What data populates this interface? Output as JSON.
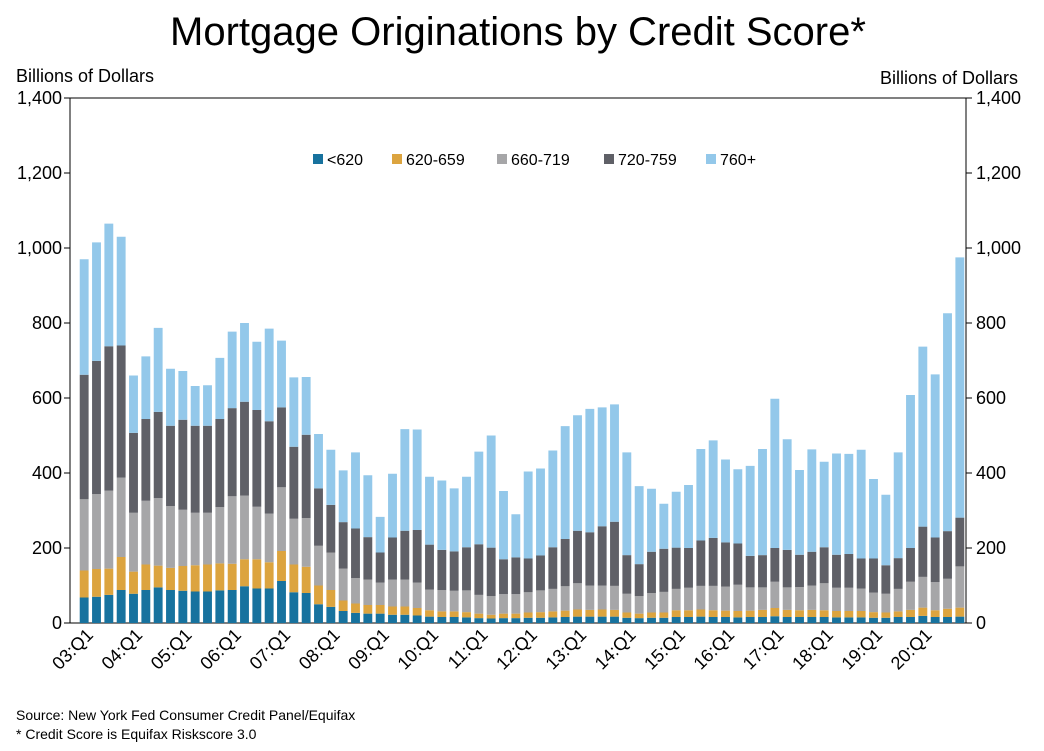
{
  "chart_data": {
    "type": "bar",
    "stacked": true,
    "title": "Mortgage Originations by Credit Score*",
    "ylabel_left": "Billions of Dollars",
    "ylabel_right": "Billions of Dollars",
    "ylim": [
      0,
      1400
    ],
    "yticks": [
      "0",
      "200",
      "400",
      "600",
      "800",
      "1,000",
      "1,200",
      "1,400"
    ],
    "grid": false,
    "legend_position": "top-center",
    "x_tick_labels": [
      "03:Q1",
      "04:Q1",
      "05:Q1",
      "06:Q1",
      "07:Q1",
      "08:Q1",
      "09:Q1",
      "10:Q1",
      "11:Q1",
      "12:Q1",
      "13:Q1",
      "14:Q1",
      "15:Q1",
      "16:Q1",
      "17:Q1",
      "18:Q1",
      "19:Q1",
      "20:Q1"
    ],
    "categories": [
      "03:Q1",
      "03:Q2",
      "03:Q3",
      "03:Q4",
      "04:Q1",
      "04:Q2",
      "04:Q3",
      "04:Q4",
      "05:Q1",
      "05:Q2",
      "05:Q3",
      "05:Q4",
      "06:Q1",
      "06:Q2",
      "06:Q3",
      "06:Q4",
      "07:Q1",
      "07:Q2",
      "07:Q3",
      "07:Q4",
      "08:Q1",
      "08:Q2",
      "08:Q3",
      "08:Q4",
      "09:Q1",
      "09:Q2",
      "09:Q3",
      "09:Q4",
      "10:Q1",
      "10:Q2",
      "10:Q3",
      "10:Q4",
      "11:Q1",
      "11:Q2",
      "11:Q3",
      "11:Q4",
      "12:Q1",
      "12:Q2",
      "12:Q3",
      "12:Q4",
      "13:Q1",
      "13:Q2",
      "13:Q3",
      "13:Q4",
      "14:Q1",
      "14:Q2",
      "14:Q3",
      "14:Q4",
      "15:Q1",
      "15:Q2",
      "15:Q3",
      "15:Q4",
      "16:Q1",
      "16:Q2",
      "16:Q3",
      "16:Q4",
      "17:Q1",
      "17:Q2",
      "17:Q3",
      "17:Q4",
      "18:Q1",
      "18:Q2",
      "18:Q3",
      "18:Q4",
      "19:Q1",
      "19:Q2",
      "19:Q3",
      "19:Q4",
      "20:Q1",
      "20:Q2",
      "20:Q3",
      "20:Q4"
    ],
    "series": [
      {
        "name": "<620",
        "color": "#17729e",
        "values": [
          68,
          70,
          75,
          88,
          78,
          88,
          95,
          88,
          86,
          84,
          84,
          87,
          88,
          98,
          92,
          92,
          112,
          82,
          80,
          50,
          43,
          32,
          27,
          25,
          25,
          22,
          22,
          20,
          17,
          16,
          16,
          15,
          13,
          12,
          13,
          13,
          14,
          14,
          15,
          16,
          17,
          17,
          17,
          17,
          14,
          13,
          14,
          14,
          16,
          16,
          17,
          16,
          16,
          15,
          16,
          16,
          18,
          16,
          16,
          16,
          16,
          15,
          15,
          15,
          14,
          14,
          16,
          16,
          19,
          16,
          16,
          17
        ]
      },
      {
        "name": "620-659",
        "color": "#dca43f",
        "values": [
          72,
          74,
          70,
          88,
          59,
          68,
          58,
          59,
          66,
          70,
          72,
          72,
          70,
          72,
          78,
          70,
          80,
          74,
          70,
          50,
          45,
          28,
          25,
          23,
          23,
          22,
          22,
          20,
          17,
          15,
          15,
          14,
          12,
          10,
          12,
          12,
          14,
          15,
          16,
          17,
          19,
          18,
          19,
          18,
          14,
          12,
          14,
          14,
          18,
          18,
          19,
          18,
          17,
          17,
          17,
          19,
          22,
          19,
          18,
          19,
          18,
          17,
          17,
          17,
          15,
          14,
          15,
          19,
          22,
          18,
          22,
          24
        ]
      },
      {
        "name": "660-719",
        "color": "#a6a6a8",
        "values": [
          190,
          200,
          208,
          212,
          157,
          170,
          180,
          165,
          150,
          140,
          138,
          150,
          180,
          170,
          140,
          130,
          170,
          122,
          130,
          106,
          100,
          85,
          68,
          68,
          60,
          72,
          72,
          68,
          55,
          57,
          55,
          58,
          50,
          50,
          52,
          52,
          54,
          58,
          60,
          65,
          70,
          65,
          64,
          64,
          50,
          47,
          52,
          55,
          57,
          60,
          63,
          65,
          64,
          70,
          62,
          60,
          70,
          60,
          62,
          65,
          72,
          62,
          62,
          60,
          52,
          50,
          60,
          75,
          82,
          75,
          80,
          110
        ]
      },
      {
        "name": "720-759",
        "color": "#5f6067",
        "values": [
          332,
          355,
          385,
          352,
          213,
          218,
          230,
          214,
          240,
          232,
          232,
          235,
          235,
          250,
          258,
          246,
          213,
          192,
          222,
          153,
          127,
          124,
          132,
          113,
          80,
          112,
          130,
          140,
          120,
          107,
          105,
          115,
          135,
          129,
          93,
          98,
          90,
          93,
          111,
          126,
          140,
          142,
          158,
          171,
          103,
          85,
          110,
          115,
          110,
          106,
          121,
          128,
          118,
          110,
          84,
          86,
          90,
          100,
          86,
          90,
          96,
          88,
          90,
          80,
          91,
          76,
          82,
          90,
          134,
          119,
          127,
          130
        ]
      },
      {
        "name": "760+",
        "color": "#93c8ea",
        "values": [
          308,
          316,
          327,
          290,
          153,
          167,
          224,
          152,
          130,
          106,
          108,
          163,
          204,
          210,
          182,
          247,
          178,
          185,
          154,
          145,
          147,
          138,
          203,
          165,
          95,
          170,
          271,
          268,
          181,
          185,
          168,
          188,
          247,
          299,
          182,
          115,
          232,
          232,
          258,
          301,
          308,
          329,
          317,
          313,
          274,
          208,
          168,
          120,
          149,
          168,
          244,
          260,
          221,
          198,
          240,
          283,
          398,
          295,
          226,
          273,
          228,
          270,
          267,
          290,
          212,
          188,
          282,
          408,
          480,
          435,
          581,
          694
        ]
      }
    ]
  },
  "notes": {
    "source": "Source: New York Fed Consumer Credit Panel/Equifax",
    "footnote": "* Credit Score is Equifax Riskscore 3.0"
  }
}
